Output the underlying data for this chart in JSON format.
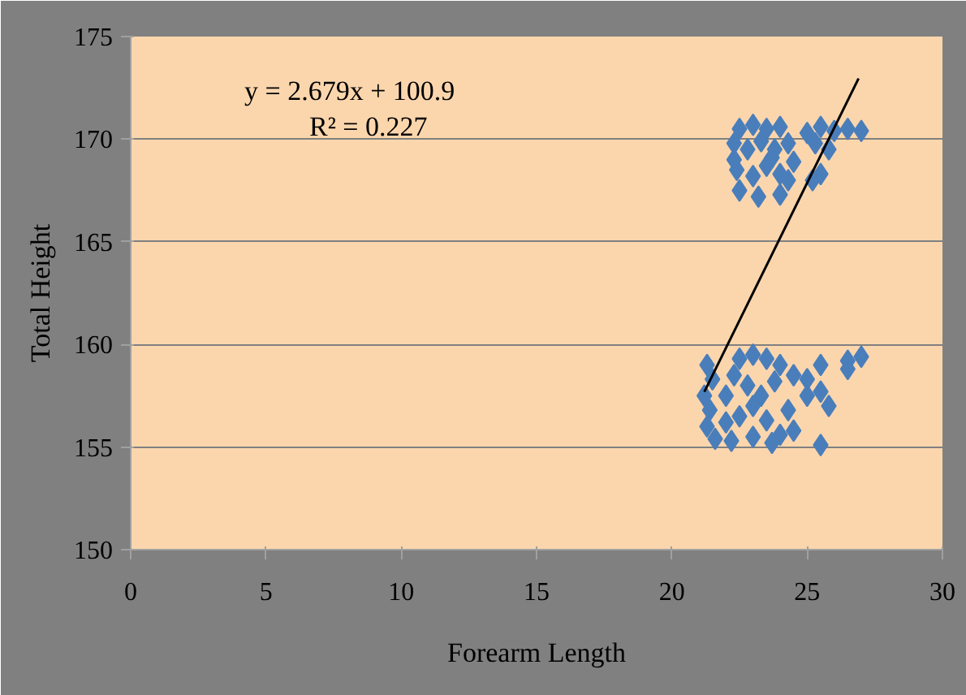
{
  "chart_data": {
    "type": "scatter",
    "xlabel": "Forearm Length",
    "ylabel": "Total Height",
    "xlim": [
      0,
      30
    ],
    "ylim": [
      150,
      175
    ],
    "xticks": [
      0,
      5,
      10,
      15,
      20,
      25,
      30
    ],
    "yticks": [
      150,
      155,
      160,
      165,
      170,
      175
    ],
    "grid": "y",
    "annotations": [
      "y = 2.679x + 100.9",
      "R² = 0.227"
    ],
    "series": [
      {
        "color": "#4a7ebb",
        "marker": "diamond",
        "x": [
          22.5,
          23,
          23.5,
          24,
          22.3,
          22.8,
          23.3,
          23.8,
          24.3,
          25,
          25.5,
          26,
          26.5,
          27,
          25.3,
          25.8,
          22.4,
          23,
          23.5,
          24,
          24.5,
          25.5,
          22.5,
          23.2,
          24,
          24.3,
          25.2,
          22.3,
          23.7,
          21.3,
          21.5,
          21.2,
          21.4,
          21.3,
          21.6,
          22,
          22,
          22.3,
          22.5,
          23,
          23.5,
          24,
          22.8,
          23.3,
          23.8,
          24.5,
          25,
          25.5,
          25,
          25.5,
          25.8,
          26.5,
          27,
          26.5,
          22.5,
          23,
          23.5,
          24,
          24.5,
          24.3,
          23,
          22.2,
          25.5,
          23.7
        ],
        "values": [
          170.5,
          170.7,
          170.5,
          170.6,
          169.8,
          169.5,
          169.9,
          169.5,
          169.8,
          170.3,
          170.6,
          170.4,
          170.5,
          170.4,
          169.8,
          169.5,
          168.5,
          168.2,
          168.7,
          168.3,
          168.9,
          168.3,
          167.5,
          167.2,
          167.3,
          168,
          168,
          169,
          169.1,
          159,
          158.3,
          157.5,
          156.8,
          156,
          155.4,
          156.2,
          157.5,
          158.5,
          159.3,
          159.5,
          159.3,
          159,
          158,
          157.5,
          158.2,
          158.5,
          158.3,
          159,
          157.5,
          157.7,
          157,
          159.2,
          159.4,
          158.8,
          156.5,
          155.5,
          156.3,
          155.6,
          155.8,
          156.8,
          157,
          155.3,
          155.1,
          155.2
        ]
      },
      {
        "type": "line",
        "color": "#000000",
        "x": [
          21.2,
          26.9
        ],
        "values": [
          157.69,
          172.96
        ],
        "marker": "none"
      }
    ]
  }
}
